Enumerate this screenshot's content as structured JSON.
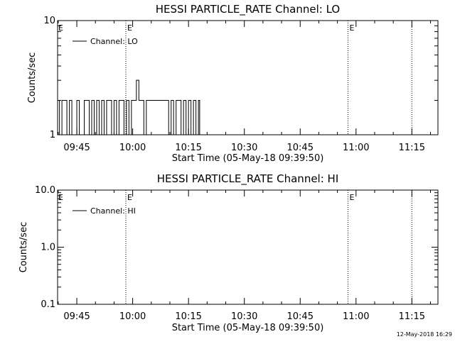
{
  "chart_data": [
    {
      "type": "line",
      "title": "HESSI PARTICLE_RATE Channel: LO",
      "xlabel": "Start Time (05-May-18 09:39:50)",
      "ylabel": "Counts/sec",
      "yscale": "log",
      "ylim": [
        1,
        10
      ],
      "yticks": [
        "1",
        "10"
      ],
      "xlim": [
        "09:39:50",
        "11:22:00"
      ],
      "xticks": [
        "09:45",
        "10:00",
        "10:15",
        "10:30",
        "10:45",
        "11:00",
        "11:15"
      ],
      "grid": false,
      "legend": {
        "position": "top-left",
        "entries": [
          "Channel: LO"
        ]
      },
      "event_lines": [
        {
          "time": "09:58:10",
          "label": "E"
        },
        {
          "time": "10:57:50",
          "label": "E"
        },
        {
          "time": "11:15:00",
          "label": ""
        }
      ],
      "series": [
        {
          "name": "Channel: LO",
          "x": [
            "09:39:50",
            "09:40:20",
            "09:41:00",
            "09:41:40",
            "09:42:20",
            "09:43:00",
            "09:43:40",
            "09:44:20",
            "09:45:00",
            "09:45:40",
            "09:46:20",
            "09:47:00",
            "09:47:40",
            "09:48:20",
            "09:49:00",
            "09:49:40",
            "09:50:20",
            "09:51:00",
            "09:51:40",
            "09:52:20",
            "09:53:00",
            "09:53:40",
            "09:54:20",
            "09:55:00",
            "09:55:40",
            "09:56:20",
            "09:57:00",
            "09:57:40",
            "09:58:20",
            "09:59:00",
            "09:59:40",
            "10:00:20",
            "10:01:00",
            "10:01:40",
            "10:02:20",
            "10:03:00",
            "10:03:40",
            "10:04:20",
            "10:05:00",
            "10:05:40",
            "10:06:20",
            "10:07:00",
            "10:07:40",
            "10:08:20",
            "10:09:00",
            "10:09:40",
            "10:10:20",
            "10:11:00",
            "10:11:40",
            "10:12:20",
            "10:13:00",
            "10:13:40",
            "10:14:20",
            "10:15:00",
            "10:15:40",
            "10:16:20",
            "10:17:00",
            "10:17:40",
            "10:18:00"
          ],
          "values": [
            2,
            1,
            2,
            2,
            1,
            2,
            1,
            1,
            2,
            1,
            1,
            2,
            2,
            1,
            2,
            1,
            2,
            1,
            2,
            1,
            2,
            2,
            1,
            2,
            1,
            2,
            2,
            1,
            2,
            1,
            2,
            2,
            3,
            2,
            2,
            1,
            2,
            2,
            2,
            2,
            2,
            2,
            2,
            2,
            2,
            1,
            2,
            1,
            2,
            2,
            1,
            2,
            1,
            2,
            1,
            2,
            1,
            2,
            1
          ]
        }
      ]
    },
    {
      "type": "line",
      "title": "HESSI PARTICLE_RATE Channel: HI",
      "xlabel": "Start Time (05-May-18 09:39:50)",
      "ylabel": "Counts/sec",
      "yscale": "log",
      "ylim": [
        0.1,
        10
      ],
      "yticks": [
        "0.1",
        "1.0",
        "10.0"
      ],
      "xlim": [
        "09:39:50",
        "11:22:00"
      ],
      "xticks": [
        "09:45",
        "10:00",
        "10:15",
        "10:30",
        "10:45",
        "11:00",
        "11:15"
      ],
      "grid": false,
      "legend": {
        "position": "top-left",
        "entries": [
          "Channel: HI"
        ]
      },
      "event_lines": [
        {
          "time": "09:58:10",
          "label": "E"
        },
        {
          "time": "10:57:50",
          "label": "E"
        },
        {
          "time": "11:15:00",
          "label": ""
        }
      ],
      "series": [
        {
          "name": "Channel: HI",
          "x": [],
          "values": []
        }
      ]
    }
  ],
  "footer": {
    "timestamp": "12-May-2018 16:29"
  }
}
